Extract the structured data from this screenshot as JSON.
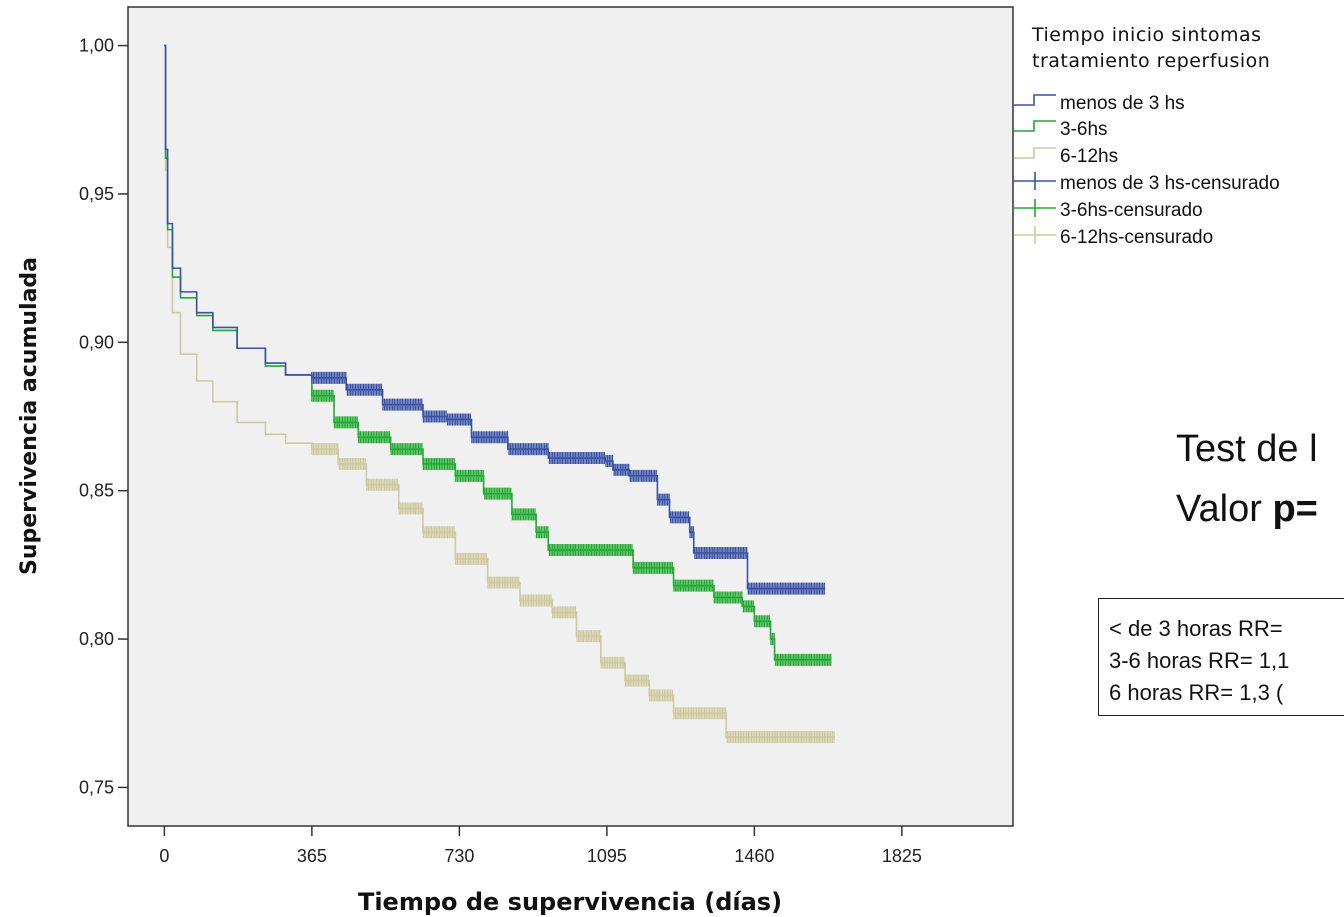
{
  "chart_data": {
    "type": "line",
    "xlabel": "Tiempo de supervivencia (días)",
    "ylabel": "Supervivencia acumulada",
    "xlim": [
      -90,
      2100
    ],
    "ylim": [
      0.737,
      1.013
    ],
    "x_ticks": [
      0,
      365,
      730,
      1095,
      1460,
      1825
    ],
    "y_ticks": [
      1.0,
      0.95,
      0.9,
      0.85,
      0.8,
      0.75
    ],
    "y_tick_labels": [
      "1,00",
      "0,95",
      "0,90",
      "0,85",
      "0,80",
      "0,75"
    ],
    "grid": false,
    "legend_title": [
      "Tiempo inicio sintomas",
      "tratamiento reperfusion"
    ],
    "legend_position": "top-right",
    "series": [
      {
        "name": "menos de 3 hs",
        "censored_name": "menos de 3 hs-censurado",
        "color": "#3a52a6",
        "censor_start": 365,
        "censor_end": 1635,
        "points": [
          [
            0,
            1.0
          ],
          [
            3,
            0.965
          ],
          [
            8,
            0.94
          ],
          [
            20,
            0.925
          ],
          [
            40,
            0.917
          ],
          [
            80,
            0.91
          ],
          [
            120,
            0.905
          ],
          [
            180,
            0.898
          ],
          [
            250,
            0.893
          ],
          [
            300,
            0.889
          ],
          [
            365,
            0.888
          ],
          [
            450,
            0.884
          ],
          [
            540,
            0.879
          ],
          [
            640,
            0.875
          ],
          [
            700,
            0.874
          ],
          [
            760,
            0.868
          ],
          [
            850,
            0.864
          ],
          [
            950,
            0.861
          ],
          [
            1090,
            0.86
          ],
          [
            1110,
            0.857
          ],
          [
            1150,
            0.855
          ],
          [
            1200,
            0.855
          ],
          [
            1220,
            0.847
          ],
          [
            1250,
            0.841
          ],
          [
            1300,
            0.836
          ],
          [
            1310,
            0.829
          ],
          [
            1440,
            0.829
          ],
          [
            1443,
            0.817
          ],
          [
            1635,
            0.817
          ]
        ]
      },
      {
        "name": "3-6hs",
        "censored_name": "3-6hs-censurado",
        "color": "#22aa33",
        "censor_start": 365,
        "censor_end": 1650,
        "points": [
          [
            0,
            1.0
          ],
          [
            3,
            0.962
          ],
          [
            8,
            0.938
          ],
          [
            20,
            0.922
          ],
          [
            40,
            0.915
          ],
          [
            80,
            0.909
          ],
          [
            120,
            0.904
          ],
          [
            180,
            0.898
          ],
          [
            250,
            0.892
          ],
          [
            300,
            0.889
          ],
          [
            350,
            0.889
          ],
          [
            365,
            0.882
          ],
          [
            420,
            0.873
          ],
          [
            480,
            0.868
          ],
          [
            560,
            0.864
          ],
          [
            640,
            0.859
          ],
          [
            720,
            0.855
          ],
          [
            790,
            0.849
          ],
          [
            860,
            0.842
          ],
          [
            920,
            0.836
          ],
          [
            950,
            0.83
          ],
          [
            1100,
            0.83
          ],
          [
            1160,
            0.824
          ],
          [
            1260,
            0.818
          ],
          [
            1360,
            0.814
          ],
          [
            1430,
            0.811
          ],
          [
            1460,
            0.806
          ],
          [
            1500,
            0.8
          ],
          [
            1510,
            0.793
          ],
          [
            1650,
            0.793
          ]
        ]
      },
      {
        "name": "6-12hs",
        "censored_name": "6-12hs-censurado",
        "color": "#cfc9a0",
        "censor_start": 365,
        "censor_end": 1660,
        "points": [
          [
            0,
            1.0
          ],
          [
            3,
            0.958
          ],
          [
            8,
            0.932
          ],
          [
            20,
            0.91
          ],
          [
            40,
            0.896
          ],
          [
            80,
            0.887
          ],
          [
            120,
            0.88
          ],
          [
            180,
            0.873
          ],
          [
            250,
            0.869
          ],
          [
            300,
            0.866
          ],
          [
            365,
            0.864
          ],
          [
            430,
            0.859
          ],
          [
            500,
            0.852
          ],
          [
            580,
            0.844
          ],
          [
            640,
            0.836
          ],
          [
            720,
            0.827
          ],
          [
            800,
            0.819
          ],
          [
            880,
            0.813
          ],
          [
            960,
            0.809
          ],
          [
            1020,
            0.801
          ],
          [
            1080,
            0.792
          ],
          [
            1140,
            0.786
          ],
          [
            1200,
            0.781
          ],
          [
            1260,
            0.775
          ],
          [
            1380,
            0.775
          ],
          [
            1390,
            0.767
          ],
          [
            1660,
            0.767
          ]
        ]
      }
    ]
  },
  "annotations": {
    "test_line1": "Test de l",
    "test_line2_prefix": "Valor ",
    "test_line2_bold": "p=",
    "rr_lines": [
      "< de 3 horas RR=",
      "3-6 horas RR= 1,1",
      "6 horas RR= 1,3 ("
    ]
  }
}
